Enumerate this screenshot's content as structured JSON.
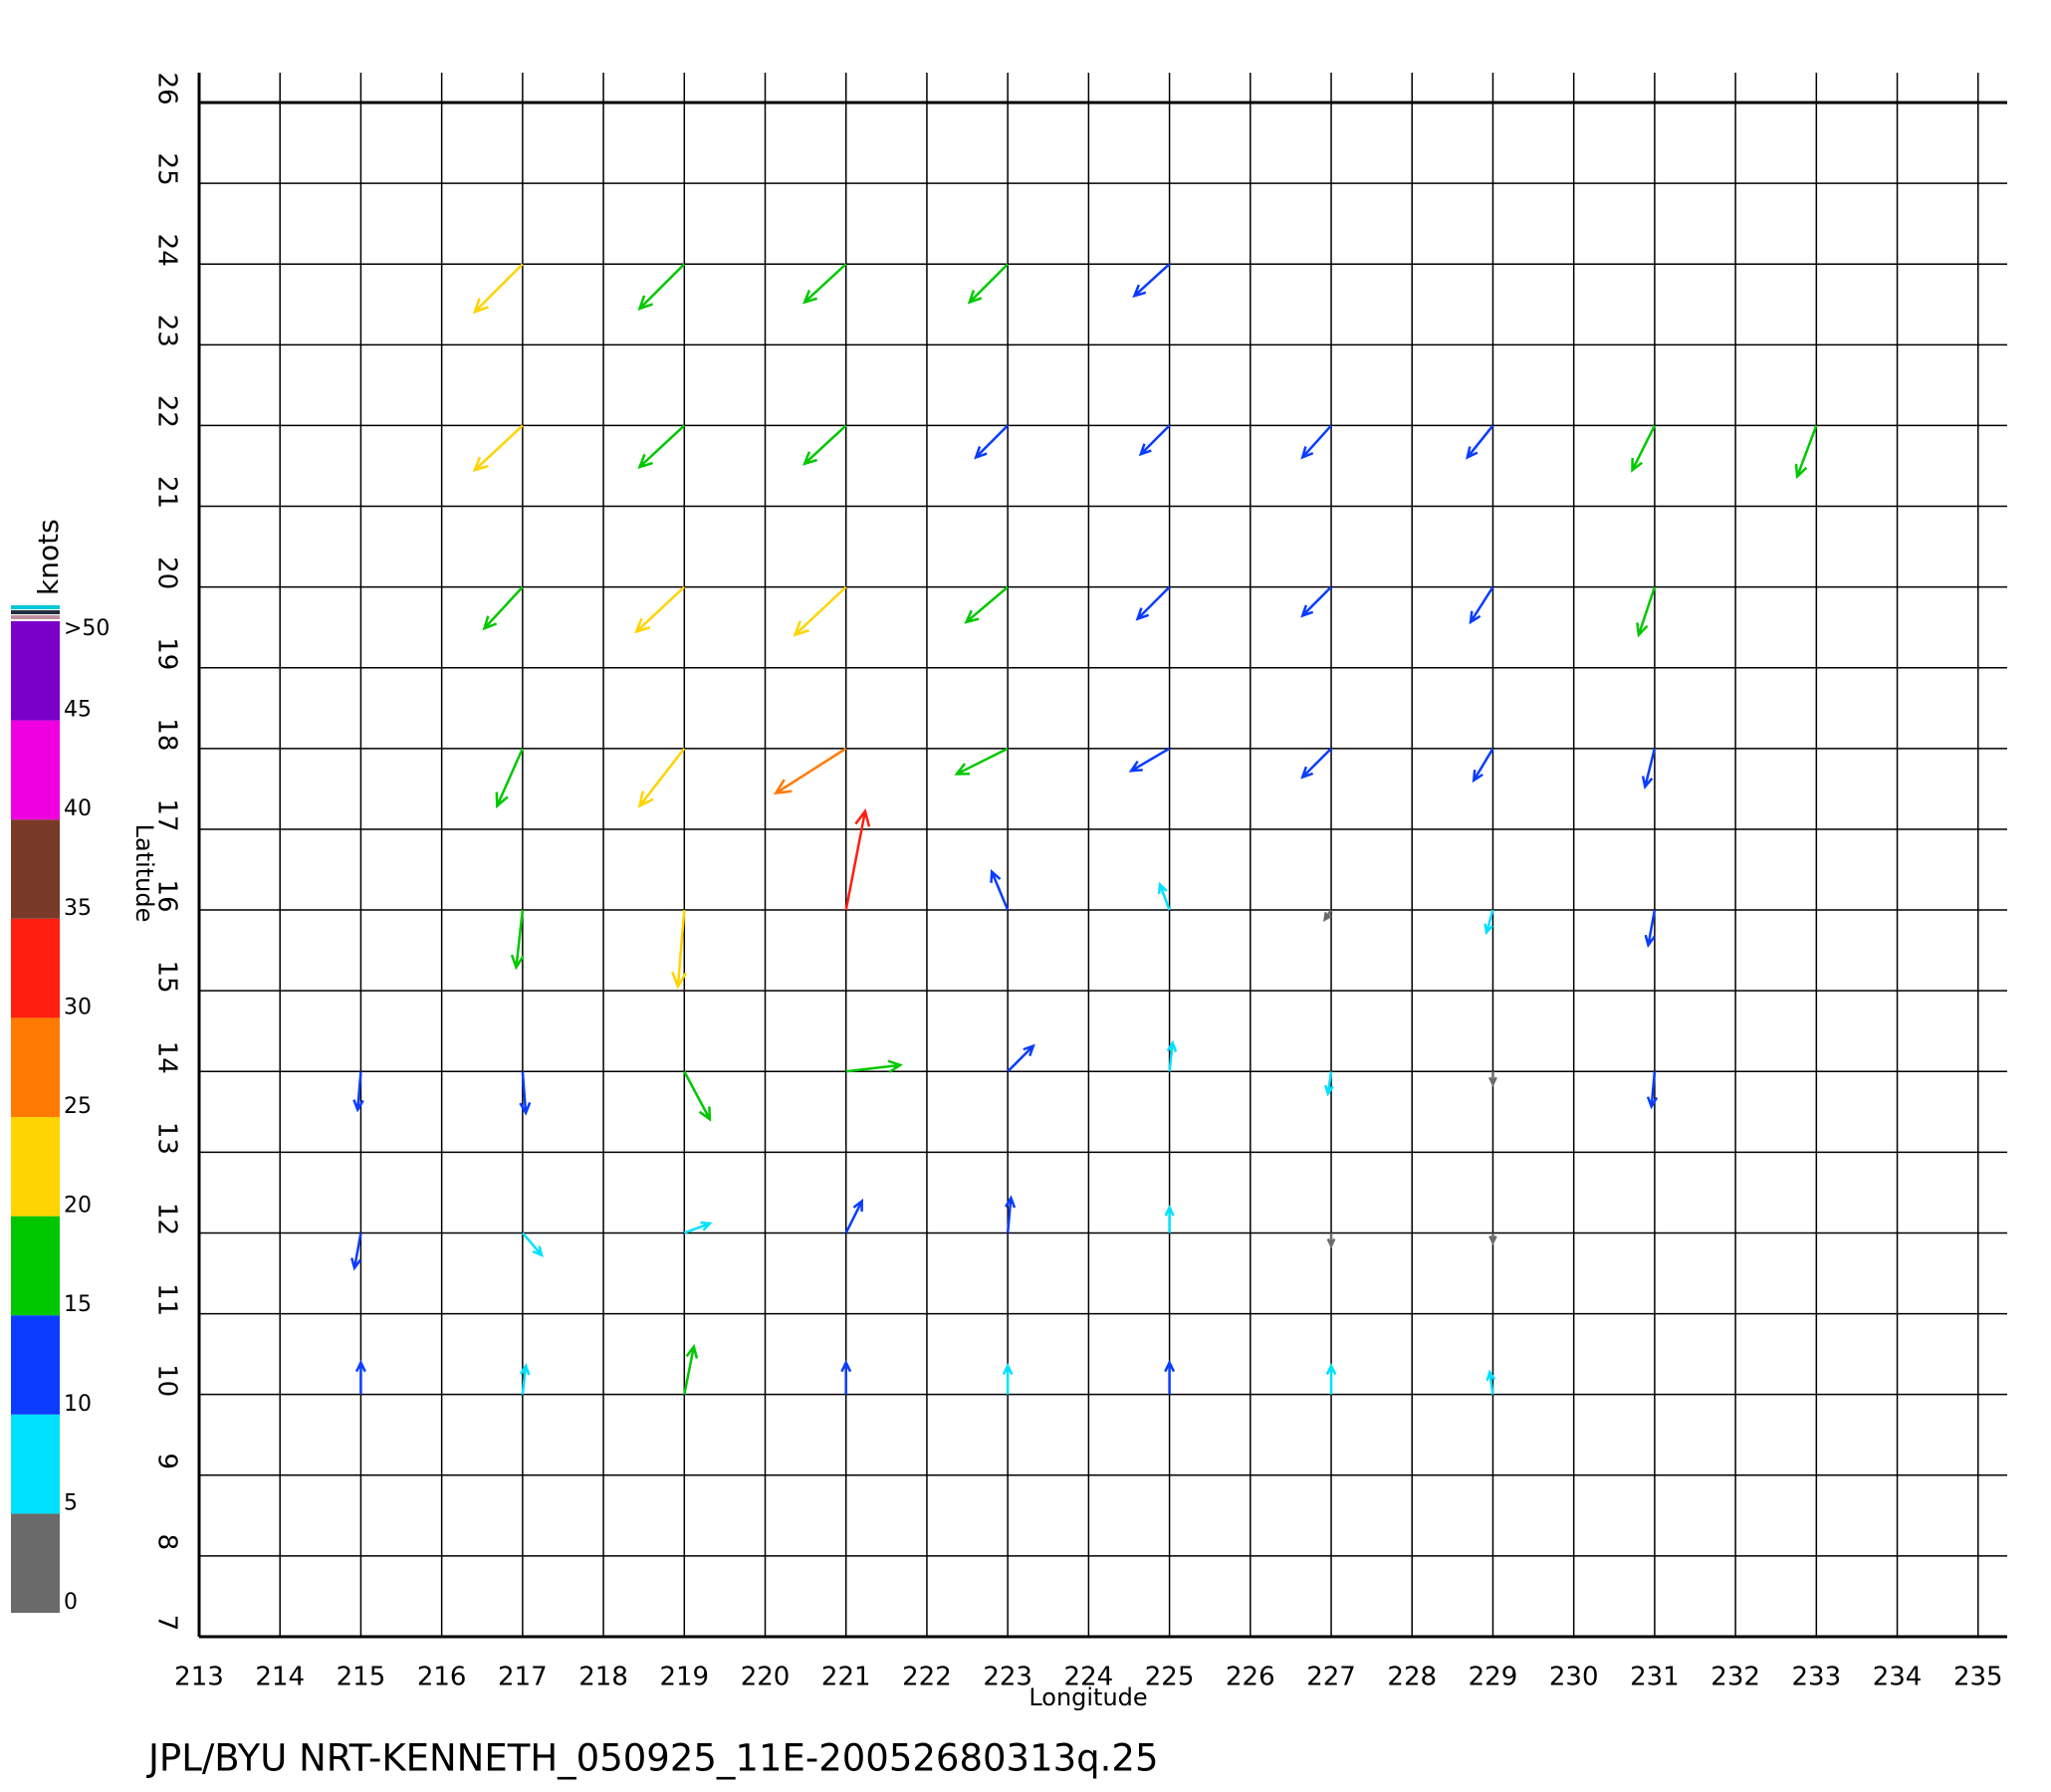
{
  "chart_data": {
    "type": "vector",
    "title": "JPL/BYU NRT-KENNETH_050925_11E-20052680313q.25",
    "x_label": "Longitude",
    "y_label": "Latitude",
    "xlim": [
      213,
      235.36
    ],
    "ylim": [
      7,
      26
    ],
    "xticks": [
      213,
      214,
      215,
      216,
      217,
      218,
      219,
      220,
      221,
      222,
      223,
      224,
      225,
      226,
      227,
      228,
      229,
      230,
      231,
      232,
      233,
      234,
      235
    ],
    "yticks": [
      7,
      8,
      9,
      10,
      11,
      12,
      13,
      14,
      15,
      16,
      17,
      18,
      19,
      20,
      21,
      22,
      23,
      24,
      25,
      26
    ],
    "grid": true,
    "series": [
      {
        "x": [
          217,
          219,
          221,
          223,
          225,
          217,
          219,
          221,
          223,
          225,
          227,
          229,
          231,
          233,
          217,
          219,
          221,
          223,
          225,
          227,
          229,
          231,
          217,
          219,
          221,
          223,
          225,
          227,
          229,
          231,
          217,
          219,
          221,
          223,
          225,
          227,
          229,
          231,
          215,
          217,
          219,
          221,
          223,
          225,
          227,
          229,
          231,
          215,
          217,
          219,
          221,
          223,
          225,
          227,
          229,
          215,
          217,
          219,
          221,
          223,
          225,
          227,
          229
        ],
        "y": [
          24,
          24,
          24,
          24,
          24,
          22,
          22,
          22,
          22,
          22,
          22,
          22,
          22,
          22,
          20,
          20,
          20,
          20,
          20,
          20,
          20,
          20,
          18,
          18,
          18,
          18,
          18,
          18,
          18,
          18,
          16,
          16,
          16,
          16,
          16,
          16,
          16,
          16,
          14,
          14,
          14,
          14,
          14,
          14,
          14,
          14,
          14,
          12,
          12,
          12,
          12,
          12,
          12,
          12,
          12,
          10,
          10,
          10,
          10,
          10,
          10,
          10,
          10
        ],
        "u": [
          -15,
          -14,
          -13,
          -12,
          -11,
          -15,
          -14,
          -13,
          -10,
          -9,
          -9,
          -8,
          -7,
          -6,
          -12,
          -15,
          -16,
          -13,
          -10,
          -9,
          -7,
          -5,
          -8,
          -14,
          -22,
          -16,
          -12,
          -9,
          -6,
          -3,
          -2,
          -2,
          6,
          -5,
          -3,
          -2,
          -2,
          -2,
          -1,
          1,
          8,
          17,
          8,
          1,
          -1,
          0,
          -1,
          -2,
          6,
          8,
          5,
          1,
          0,
          0,
          0,
          0,
          1,
          3,
          0,
          0,
          0,
          0,
          -1
        ],
        "v": [
          -15,
          -14,
          -12,
          -12,
          -10,
          -14,
          -13,
          -12,
          -10,
          -9,
          -10,
          -10,
          -14,
          -16,
          -13,
          -14,
          -15,
          -11,
          -10,
          -9,
          -11,
          -15,
          -18,
          -18,
          -14,
          -8,
          -7,
          -9,
          -10,
          -12,
          -18,
          -24,
          31,
          12,
          8,
          -3,
          -7,
          -11,
          -12,
          -13,
          -15,
          2,
          8,
          9,
          -7,
          -4,
          -11,
          -11,
          -7,
          3,
          10,
          11,
          8,
          -4,
          -3,
          10,
          9,
          15,
          10,
          9,
          10,
          9,
          7
        ]
      }
    ],
    "colorbar": {
      "label": "knots",
      "ticks": [
        0,
        5,
        10,
        15,
        20,
        25,
        30,
        35,
        40,
        45,
        {
          "value": 50,
          "label": ">50"
        }
      ],
      "colors": [
        "#6a6a6a",
        "#00e0ff",
        "#0a3cff",
        "#00c800",
        "#ffd400",
        "#ff7a00",
        "#ff1e10",
        "#7a3a28",
        "#f000e0",
        "#7a00c8"
      ]
    }
  }
}
